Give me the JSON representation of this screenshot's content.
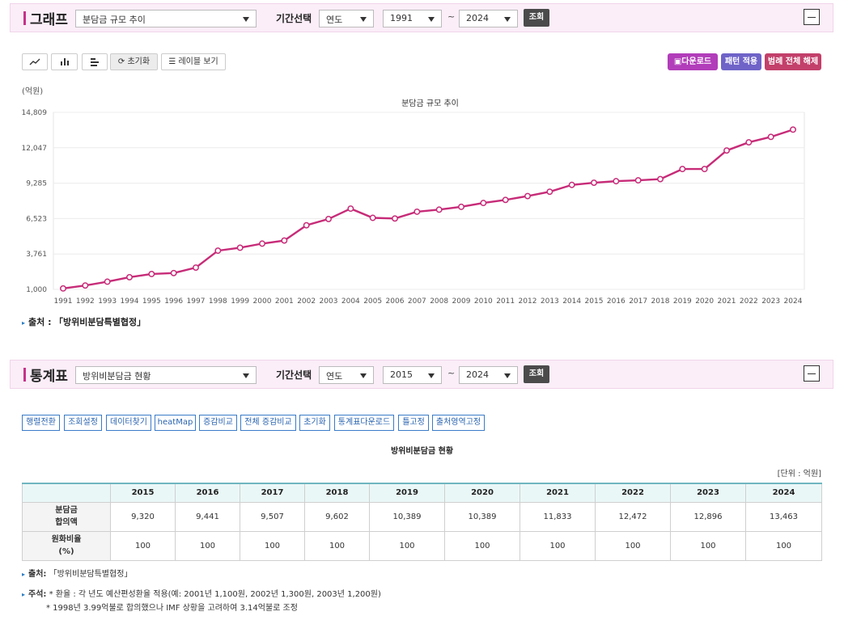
{
  "graph_section": {
    "title": "그래프",
    "dataset_select": "분담금 규모 추이",
    "period_label": "기간선택",
    "period_type": "연도",
    "from_year": "1991",
    "tilde": "~",
    "to_year": "2024",
    "search_btn": "조회"
  },
  "toolbar": {
    "reset_label": "초기화",
    "legend_label": "레이블 보기",
    "download_label": "다운로드",
    "pattern_label": "패턴 적용",
    "legend_clear_label": "범례 전체 해제",
    "download_color": "#b23dba",
    "pattern_color": "#6f63c8",
    "legend_clear_color": "#c3406b"
  },
  "chart_unit": "(억원)",
  "chart_data": {
    "type": "line",
    "title": "분담금 규모 추이",
    "ylabel": "(억원)",
    "ylim": [
      1000,
      14809
    ],
    "yticks": [
      "14,809",
      "12,047",
      "9,285",
      "6,523",
      "3,761",
      "1,000"
    ],
    "ytick_values": [
      14809,
      12047,
      9285,
      6523,
      3761,
      1000
    ],
    "grid": true,
    "color": "#c72b78",
    "x": [
      "1991",
      "1992",
      "1993",
      "1994",
      "1995",
      "1996",
      "1997",
      "1998",
      "1999",
      "2000",
      "2001",
      "2002",
      "2003",
      "2004",
      "2005",
      "2006",
      "2007",
      "2008",
      "2009",
      "2010",
      "2011",
      "2012",
      "2013",
      "2014",
      "2015",
      "2016",
      "2017",
      "2018",
      "2019",
      "2020",
      "2021",
      "2022",
      "2023",
      "2024"
    ],
    "values": [
      1073,
      1305,
      1600,
      1950,
      2200,
      2275,
      2700,
      4020,
      4250,
      4570,
      4810,
      6000,
      6490,
      7300,
      6580,
      6530,
      7060,
      7220,
      7440,
      7740,
      7980,
      8280,
      8620,
      9150,
      9320,
      9441,
      9507,
      9602,
      10389,
      10389,
      11833,
      12472,
      12896,
      13463
    ]
  },
  "source_label": "출처 :",
  "source_value": "「방위비분담특별협정」",
  "stat_section": {
    "title": "통계표",
    "dataset_select": "방위비분담금 현황",
    "period_label": "기간선택",
    "period_type": "연도",
    "from_year": "2015",
    "tilde": "~",
    "to_year": "2024",
    "search_btn": "조회"
  },
  "table_buttons": [
    "행렬전환",
    "조회설정",
    "데이터찾기",
    "heatMap",
    "증감비교",
    "전체 증감비교",
    "초기화",
    "통계표다운로드",
    "틀고정",
    "출처영역고정"
  ],
  "table_title": "방위비분담금 현황",
  "table_unit": "[단위 : 억원]",
  "table": {
    "years": [
      "2015",
      "2016",
      "2017",
      "2018",
      "2019",
      "2020",
      "2021",
      "2022",
      "2023",
      "2024"
    ],
    "rows": [
      {
        "label_1": "분담금",
        "label_2": "합의액",
        "values": [
          "9,320",
          "9,441",
          "9,507",
          "9,602",
          "10,389",
          "10,389",
          "11,833",
          "12,472",
          "12,896",
          "13,463"
        ]
      },
      {
        "label_1": "원화비율",
        "label_2": "(%)",
        "values": [
          "100",
          "100",
          "100",
          "100",
          "100",
          "100",
          "100",
          "100",
          "100",
          "100"
        ]
      }
    ]
  },
  "notes": {
    "source_label": "출처:",
    "source_value": "「방위비분담특별협정」",
    "note_label": "주석:",
    "note_1": "* 환율 : 각 년도 예산편성환율 적용(예: 2001년 1,100원, 2002년 1,300원, 2003년 1,200원)",
    "note_2": "* 1998년 3.99억불로 합의했으나 IMF 상황을 고려하여 3.14억불로 조정"
  }
}
